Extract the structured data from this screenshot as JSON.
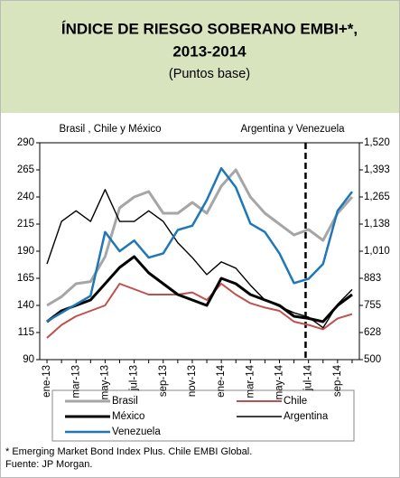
{
  "chart_data": {
    "type": "line",
    "title_line1": "ÍNDICE DE RIESGO SOBERANO EMBI+*,",
    "title_line2": "2013-2014",
    "subtitle": "(Puntos base)",
    "left_annotation": "Brasil , Chile y México",
    "right_annotation": "Argentina y Venezuela",
    "vline_at": "jul-14",
    "categories": [
      "ene-13",
      null,
      "mar-13",
      null,
      "may-13",
      null,
      "jul-13",
      null,
      "sep-13",
      null,
      "nov-13",
      null,
      "ene-14",
      null,
      "mar-14",
      null,
      "may-14",
      null,
      "jul-14",
      null,
      "sep-14",
      null
    ],
    "ylim": [
      90,
      290
    ],
    "yticks": [
      90,
      115,
      140,
      165,
      190,
      215,
      240,
      265,
      290
    ],
    "y2lim": [
      500,
      1520
    ],
    "y2ticks": [
      500,
      {
        "value": 627.5,
        "label": "628"
      },
      755,
      {
        "value": 882.5,
        "label": "883"
      },
      {
        "value": 1010,
        "label": "1,010"
      },
      {
        "value": 1137.5,
        "label": "1,138"
      },
      {
        "value": 1265,
        "label": "1,265"
      },
      {
        "value": 1392.5,
        "label": "1,393"
      },
      {
        "value": 1520,
        "label": "1,520"
      }
    ],
    "series": [
      {
        "name": "Brasil",
        "color": "#a6a6a6",
        "width": 3,
        "values": [
          140,
          148,
          160,
          162,
          185,
          230,
          240,
          245,
          225,
          225,
          235,
          225,
          250,
          265,
          240,
          225,
          215,
          205,
          210,
          200,
          225,
          240
        ]
      },
      {
        "name": "Chile",
        "color": "#c0504d",
        "width": 2,
        "values": [
          110,
          122,
          130,
          135,
          140,
          160,
          155,
          150,
          150,
          150,
          152,
          145,
          160,
          150,
          142,
          138,
          135,
          125,
          122,
          118,
          128,
          132
        ]
      },
      {
        "name": "México",
        "color": "#000000",
        "width": 3,
        "values": [
          125,
          135,
          140,
          145,
          160,
          175,
          185,
          170,
          160,
          150,
          145,
          140,
          165,
          160,
          150,
          145,
          140,
          130,
          128,
          125,
          140,
          150
        ]
      },
      {
        "name": "Argentina",
        "color": "#000000",
        "width": 1.4,
        "axis": "y2",
        "values": [
          950,
          1150,
          1200,
          1150,
          1300,
          1150,
          1150,
          1200,
          1150,
          1050,
          980,
          900,
          960,
          930,
          850,
          780,
          750,
          720,
          700,
          650,
          760,
          830
        ]
      },
      {
        "name": "Venezuela",
        "color": "#1f77b8",
        "width": 2.5,
        "axis": "y2",
        "values": [
          680,
          720,
          760,
          800,
          1100,
          1010,
          1060,
          980,
          1000,
          1110,
          1130,
          1250,
          1400,
          1310,
          1140,
          1100,
          1000,
          860,
          880,
          950,
          1200,
          1290
        ]
      }
    ],
    "footnote": "* Emerging Market Bond Index Plus. Chile EMBI Global.",
    "source": "Fuente: JP Morgan."
  }
}
